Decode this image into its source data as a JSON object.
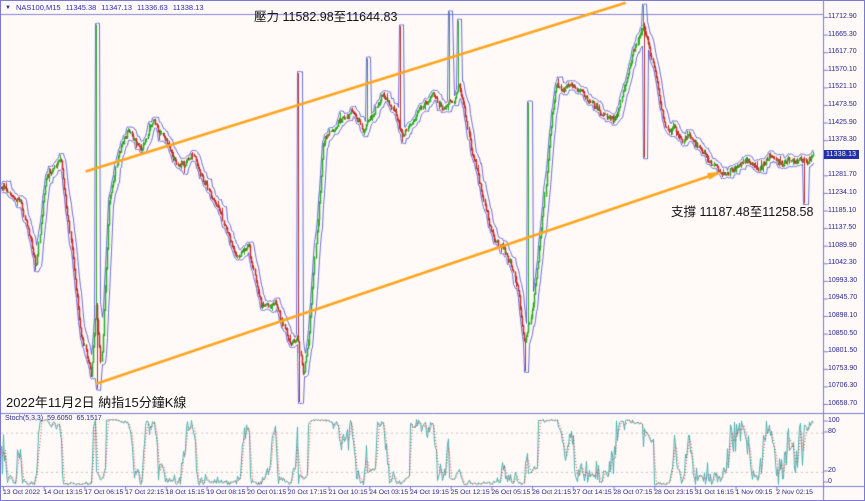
{
  "window": {
    "symbol": "NAS100,M15",
    "open": "11345.38",
    "high": "11347.13",
    "low": "11336.63",
    "close": "11338.13"
  },
  "annotations": {
    "resistance": "壓力 11582.98至11644.83",
    "support": "支撐 11187.48至11258.58",
    "caption": "2022年11月2日 納指15分鐘K線"
  },
  "indicator": {
    "name": "Stoch(5,3,3)",
    "k_value": "59.6050",
    "d_value": "65.1517",
    "axis_labels": [
      "100",
      "80",
      "20",
      "0"
    ]
  },
  "current_price": "11338.13",
  "colors": {
    "background": "#fffaf8",
    "panel_border": "#7a7ad0",
    "grid_line": "#8585d8",
    "axis_text": "#26268c",
    "symbol_text": "#2b2bb4",
    "up_candle": "#2fae2f",
    "down_candle": "#c23333",
    "envelope": "#4a4ad2",
    "trendline": "#ffa51f",
    "stoch_main": "#4fb3b3",
    "stoch_signal": "#e04848",
    "level_dotted": "#c8c8c8",
    "price_tag_bg": "#2330a8",
    "price_tag_text": "#ffffff",
    "annotation_text": "#141414"
  },
  "chart_data": [
    {
      "type": "candlestick",
      "title": "NAS100 M15 candlestick chart with envelope bands and ascending orange channel",
      "price_axis": {
        "visible_range": [
          10658.7,
          11712.9
        ],
        "labels": [
          "11712.90",
          "11665.30",
          "11617.70",
          "11570.10",
          "11521.10",
          "11473.50",
          "11425.90",
          "11378.30",
          "11330.70",
          "11281.70",
          "11234.10",
          "11185.10",
          "11137.50",
          "11089.90",
          "11042.30",
          "10993.30",
          "10945.70",
          "10898.10",
          "10850.50",
          "10801.50",
          "10753.90",
          "10706.30",
          "10658.70"
        ]
      },
      "time_axis_labels": [
        "13 Oct 2022",
        "14 Oct 13:15",
        "17 Oct 06:15",
        "17 Oct 22:15",
        "18 Oct 15:15",
        "19 Oct 08:15",
        "20 Oct 01:15",
        "20 Oct 17:15",
        "21 Oct 10:15",
        "24 Oct 03:15",
        "24 Oct 19:15",
        "25 Oct 12:15",
        "26 Oct 05:15",
        "26 Oct 21:15",
        "27 Oct 14:15",
        "28 Oct 07:15",
        "28 Oct 23:15",
        "31 Oct 16:15",
        "1 Nov 09:15",
        "2 Nov 02:15"
      ],
      "close_waypoints": [
        [
          0.006,
          11246
        ],
        [
          0.025,
          11205
        ],
        [
          0.043,
          11039
        ],
        [
          0.055,
          11274
        ],
        [
          0.074,
          11321
        ],
        [
          0.086,
          11094
        ],
        [
          0.099,
          10844
        ],
        [
          0.111,
          10739
        ],
        [
          0.117,
          10927
        ],
        [
          0.123,
          10755
        ],
        [
          0.133,
          11205
        ],
        [
          0.145,
          11349
        ],
        [
          0.158,
          11405
        ],
        [
          0.172,
          11344
        ],
        [
          0.187,
          11433
        ],
        [
          0.203,
          11372
        ],
        [
          0.219,
          11302
        ],
        [
          0.236,
          11338
        ],
        [
          0.252,
          11255
        ],
        [
          0.271,
          11172
        ],
        [
          0.289,
          11061
        ],
        [
          0.305,
          11088
        ],
        [
          0.32,
          10927
        ],
        [
          0.339,
          10933
        ],
        [
          0.355,
          10822
        ],
        [
          0.365,
          10839
        ],
        [
          0.372,
          10739
        ],
        [
          0.379,
          10844
        ],
        [
          0.388,
          11108
        ],
        [
          0.397,
          11372
        ],
        [
          0.406,
          11405
        ],
        [
          0.421,
          11433
        ],
        [
          0.433,
          11460
        ],
        [
          0.446,
          11405
        ],
        [
          0.458,
          11449
        ],
        [
          0.47,
          11502
        ],
        [
          0.483,
          11460
        ],
        [
          0.495,
          11391
        ],
        [
          0.507,
          11433
        ],
        [
          0.52,
          11474
        ],
        [
          0.532,
          11502
        ],
        [
          0.544,
          11460
        ],
        [
          0.557,
          11488
        ],
        [
          0.563,
          11529
        ],
        [
          0.57,
          11474
        ],
        [
          0.579,
          11349
        ],
        [
          0.591,
          11252
        ],
        [
          0.603,
          11127
        ],
        [
          0.616,
          11086
        ],
        [
          0.628,
          11044
        ],
        [
          0.637,
          10961
        ],
        [
          0.645,
          10822
        ],
        [
          0.653,
          10905
        ],
        [
          0.661,
          11044
        ],
        [
          0.669,
          11211
        ],
        [
          0.676,
          11405
        ],
        [
          0.684,
          11529
        ],
        [
          0.692,
          11516
        ],
        [
          0.704,
          11529
        ],
        [
          0.717,
          11502
        ],
        [
          0.729,
          11474
        ],
        [
          0.741,
          11446
        ],
        [
          0.754,
          11433
        ],
        [
          0.761,
          11460
        ],
        [
          0.768,
          11529
        ],
        [
          0.776,
          11599
        ],
        [
          0.783,
          11641
        ],
        [
          0.791,
          11696
        ],
        [
          0.798,
          11627
        ],
        [
          0.805,
          11571
        ],
        [
          0.813,
          11460
        ],
        [
          0.82,
          11405
        ],
        [
          0.828,
          11419
        ],
        [
          0.837,
          11377
        ],
        [
          0.847,
          11391
        ],
        [
          0.857,
          11363
        ],
        [
          0.867,
          11335
        ],
        [
          0.877,
          11308
        ],
        [
          0.884,
          11294
        ],
        [
          0.892,
          11280
        ],
        [
          0.899,
          11294
        ],
        [
          0.909,
          11308
        ],
        [
          0.919,
          11322
        ],
        [
          0.926,
          11308
        ],
        [
          0.933,
          11294
        ],
        [
          0.941,
          11322
        ],
        [
          0.948,
          11335
        ],
        [
          0.956,
          11322
        ],
        [
          0.963,
          11308
        ],
        [
          0.97,
          11327
        ],
        [
          0.978,
          11316
        ],
        [
          0.985,
          11327
        ],
        [
          0.993,
          11319
        ],
        [
          1.0,
          11338
        ]
      ],
      "wick_spikes": [
        {
          "t": 0.117,
          "kind": "high",
          "price": 11692
        },
        {
          "t": 0.119,
          "kind": "low",
          "price": 10700
        },
        {
          "t": 0.366,
          "kind": "high",
          "price": 11560
        },
        {
          "t": 0.368,
          "kind": "low",
          "price": 10664
        },
        {
          "t": 0.45,
          "kind": "high",
          "price": 11600
        },
        {
          "t": 0.492,
          "kind": "high",
          "price": 11688
        },
        {
          "t": 0.552,
          "kind": "high",
          "price": 11726
        },
        {
          "t": 0.562,
          "kind": "high",
          "price": 11703
        },
        {
          "t": 0.645,
          "kind": "low",
          "price": 10748
        },
        {
          "t": 0.65,
          "kind": "high",
          "price": 11480
        },
        {
          "t": 0.79,
          "kind": "high",
          "price": 11745
        },
        {
          "t": 0.792,
          "kind": "low",
          "price": 11330
        },
        {
          "t": 0.99,
          "kind": "low",
          "price": 11205
        }
      ],
      "trendlines": [
        {
          "name": "channel-upper",
          "x1": 0.103,
          "price1": 11292,
          "x2": 0.76,
          "price2": 11752,
          "arrow": false
        },
        {
          "name": "channel-lower",
          "x1": 0.116,
          "price1": 10714,
          "x2": 0.87,
          "price2": 11286,
          "arrow": true
        }
      ],
      "last_price": 11338.13
    },
    {
      "type": "line",
      "title": "Stochastic Oscillator (5,3,3)",
      "range": [
        0,
        100
      ],
      "levels": [
        80,
        20
      ],
      "current_k": 59.605,
      "current_d": 65.1517
    }
  ]
}
